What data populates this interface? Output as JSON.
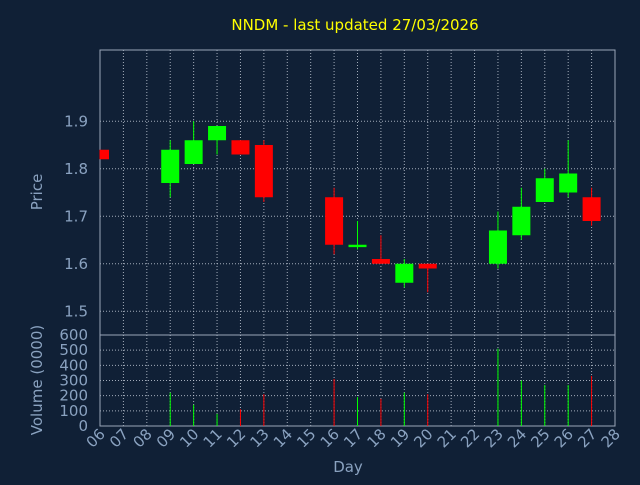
{
  "chart_data": {
    "type": "candlestick",
    "title": "NNDM - last updated 27/03/2026",
    "xlabel": "Day",
    "price_panel": {
      "ylabel": "Price",
      "ylim": [
        1.45,
        2.05
      ],
      "yticks": [
        "1.5",
        "1.6",
        "1.7",
        "1.8",
        "1.9"
      ],
      "grid": true
    },
    "volume_panel": {
      "ylabel": "Volume (0000)",
      "ylim": [
        0,
        600
      ],
      "yticks": [
        "0",
        "100",
        "200",
        "300",
        "400",
        "500",
        "600"
      ],
      "grid": true
    },
    "colors": {
      "up": "#00ff00",
      "down": "#ff0000",
      "title": "#ffff00",
      "background": "#102036"
    },
    "x_ticks": [
      "06",
      "07",
      "08",
      "09",
      "10",
      "11",
      "12",
      "13",
      "14",
      "15",
      "16",
      "17",
      "18",
      "19",
      "20",
      "21",
      "22",
      "23",
      "24",
      "25",
      "26",
      "27",
      "28"
    ],
    "candles": [
      {
        "day": "06",
        "open": 1.84,
        "high": 1.84,
        "low": 1.82,
        "close": 1.82,
        "volume": 0
      },
      {
        "day": "09",
        "open": 1.77,
        "high": 1.86,
        "low": 1.74,
        "close": 1.84,
        "volume": 220
      },
      {
        "day": "10",
        "open": 1.81,
        "high": 1.9,
        "low": 1.81,
        "close": 1.86,
        "volume": 140
      },
      {
        "day": "11",
        "open": 1.86,
        "high": 1.89,
        "low": 1.83,
        "close": 1.89,
        "volume": 80
      },
      {
        "day": "12",
        "open": 1.86,
        "high": 1.86,
        "low": 1.83,
        "close": 1.83,
        "volume": 110
      },
      {
        "day": "13",
        "open": 1.85,
        "high": 1.86,
        "low": 1.73,
        "close": 1.74,
        "volume": 210
      },
      {
        "day": "16",
        "open": 1.74,
        "high": 1.76,
        "low": 1.62,
        "close": 1.64,
        "volume": 310
      },
      {
        "day": "17",
        "open": 1.635,
        "high": 1.69,
        "low": 1.63,
        "close": 1.64,
        "volume": 190
      },
      {
        "day": "18",
        "open": 1.61,
        "high": 1.66,
        "low": 1.6,
        "close": 1.6,
        "volume": 180
      },
      {
        "day": "19",
        "open": 1.56,
        "high": 1.61,
        "low": 1.55,
        "close": 1.6,
        "volume": 220
      },
      {
        "day": "20",
        "open": 1.6,
        "high": 1.6,
        "low": 1.54,
        "close": 1.59,
        "volume": 210
      },
      {
        "day": "23",
        "open": 1.6,
        "high": 1.71,
        "low": 1.59,
        "close": 1.67,
        "volume": 510
      },
      {
        "day": "24",
        "open": 1.66,
        "high": 1.76,
        "low": 1.65,
        "close": 1.72,
        "volume": 300
      },
      {
        "day": "25",
        "open": 1.73,
        "high": 1.8,
        "low": 1.73,
        "close": 1.78,
        "volume": 270
      },
      {
        "day": "26",
        "open": 1.75,
        "high": 1.86,
        "low": 1.74,
        "close": 1.79,
        "volume": 270
      },
      {
        "day": "27",
        "open": 1.74,
        "high": 1.76,
        "low": 1.68,
        "close": 1.69,
        "volume": 330
      }
    ]
  }
}
